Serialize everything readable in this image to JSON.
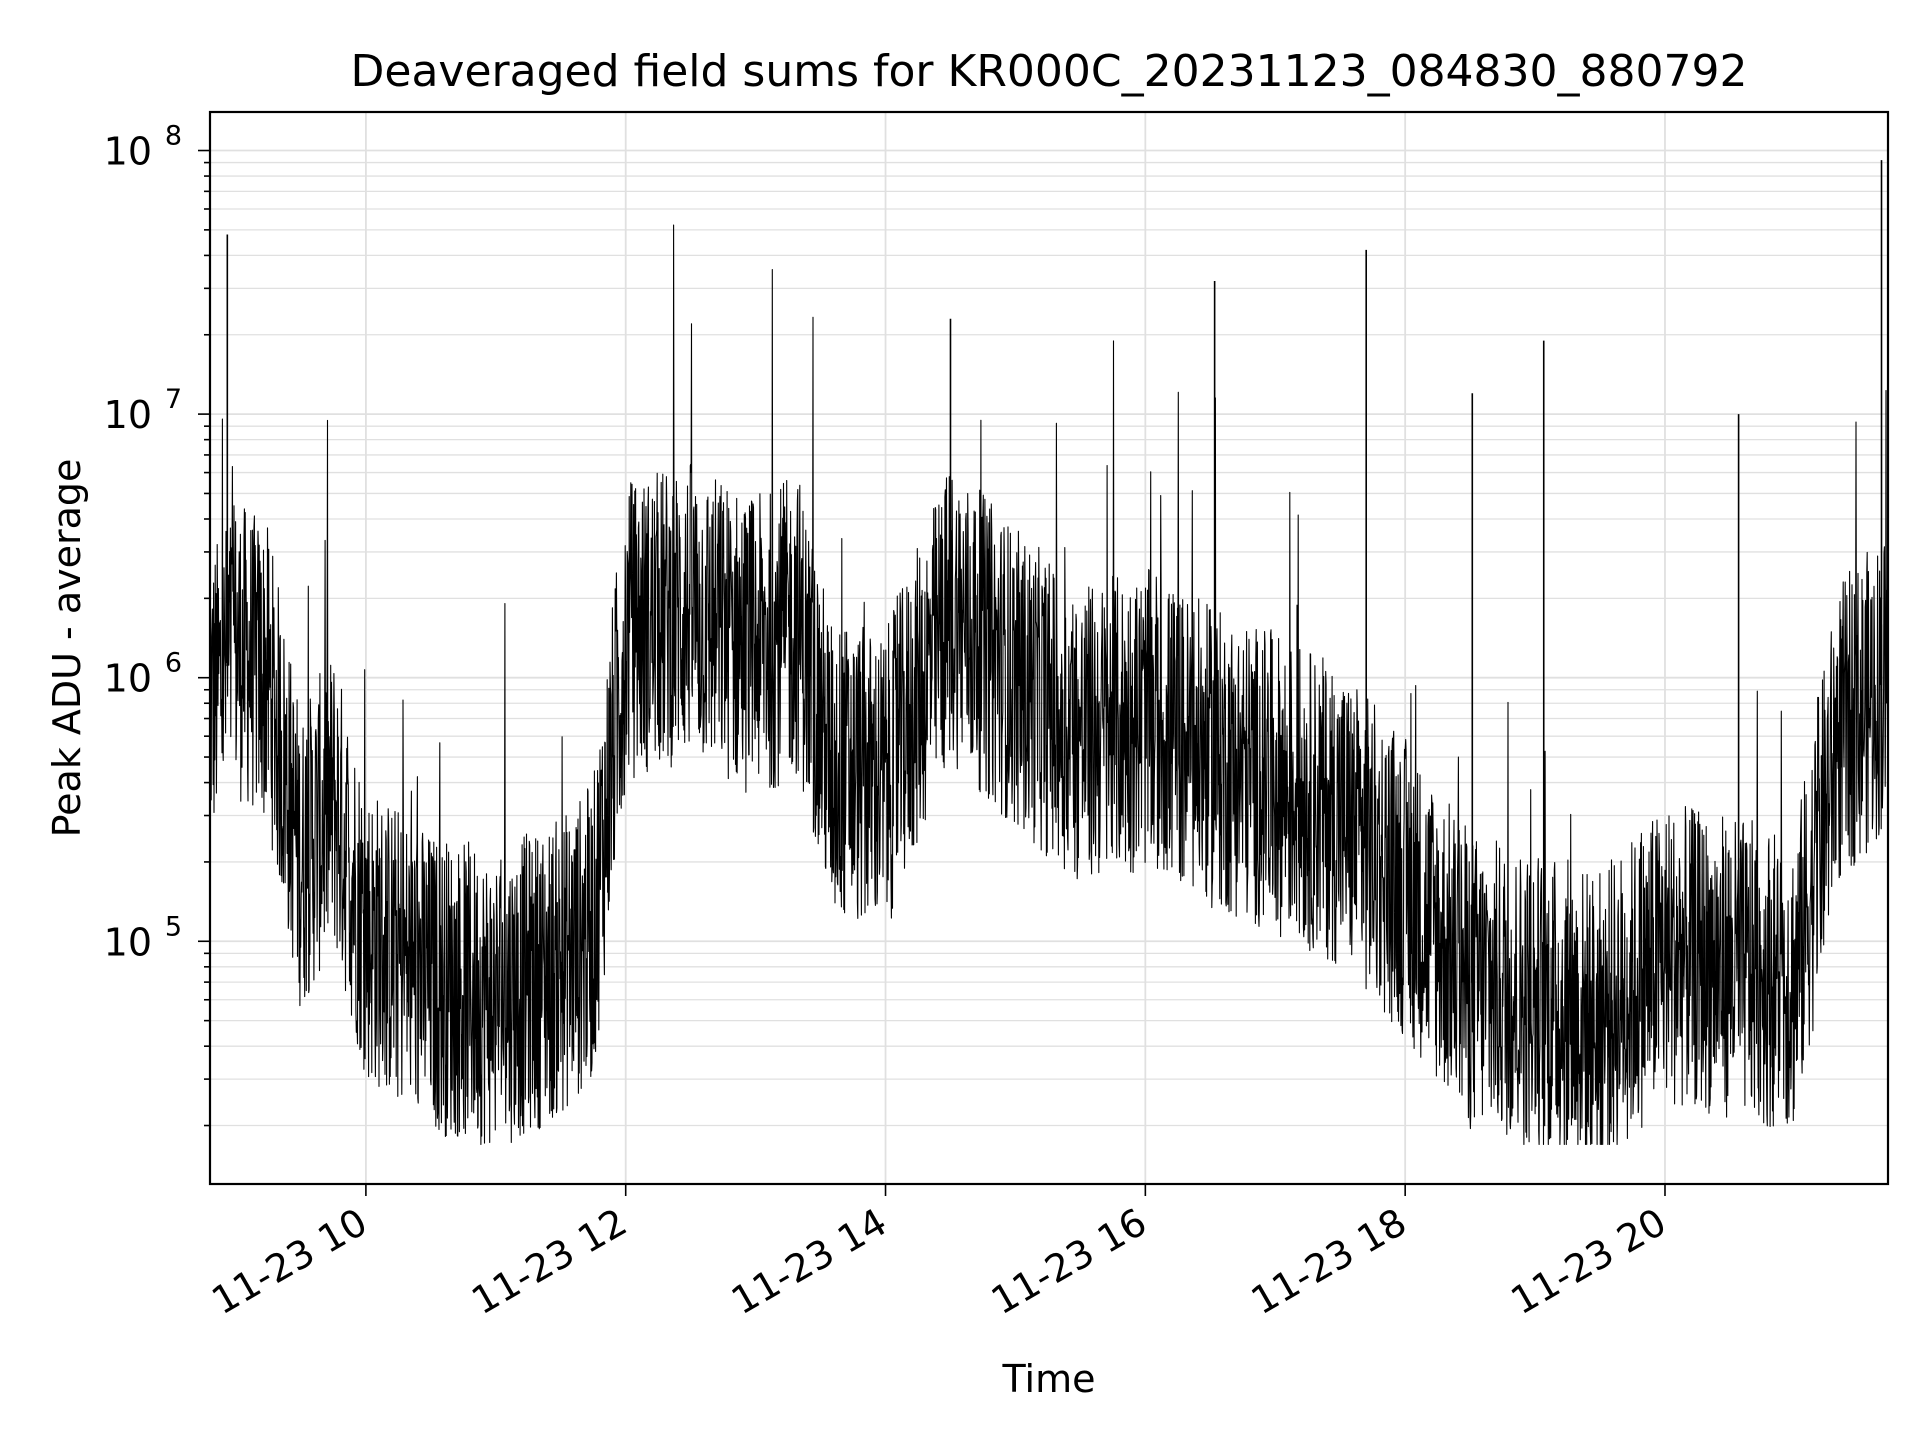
{
  "chart_data": {
    "type": "line",
    "title": "Deaveraged field sums for KR000C_20231123_084830_880792",
    "xlabel": "Time",
    "ylabel": "Peak ADU - average",
    "yscale": "log",
    "ylim": [
      12000,
      140000000
    ],
    "xlim": [
      "2023-11-23 08:48",
      "2023-11-23 21:43"
    ],
    "grid": true,
    "line_color": "#000000",
    "grid_color": "#e0e0e0",
    "x_ticks": [
      {
        "value": "2023-11-23 10:00",
        "label": "11-23 10"
      },
      {
        "value": "2023-11-23 12:00",
        "label": "11-23 12"
      },
      {
        "value": "2023-11-23 14:00",
        "label": "11-23 14"
      },
      {
        "value": "2023-11-23 16:00",
        "label": "11-23 16"
      },
      {
        "value": "2023-11-23 18:00",
        "label": "11-23 18"
      },
      {
        "value": "2023-11-23 20:00",
        "label": "11-23 20"
      }
    ],
    "y_ticks": [
      {
        "value": 100000,
        "base": "10",
        "exp": "5"
      },
      {
        "value": 1000000,
        "base": "10",
        "exp": "6"
      },
      {
        "value": 10000000,
        "base": "10",
        "exp": "7"
      },
      {
        "value": 100000000,
        "base": "10",
        "exp": "8"
      }
    ],
    "series": [
      {
        "x": [
          "2023-11-23 08:48",
          "2023-11-23 09:00",
          "2023-11-23 09:15",
          "2023-11-23 09:30",
          "2023-11-23 09:45",
          "2023-11-23 10:00",
          "2023-11-23 10:30",
          "2023-11-23 11:00",
          "2023-11-23 11:30",
          "2023-11-23 11:45",
          "2023-11-23 12:00",
          "2023-11-23 12:30",
          "2023-11-23 13:00",
          "2023-11-23 13:20",
          "2023-11-23 13:35",
          "2023-11-23 14:00",
          "2023-11-23 14:30",
          "2023-11-23 15:00",
          "2023-11-23 15:30",
          "2023-11-23 16:00",
          "2023-11-23 16:30",
          "2023-11-23 17:00",
          "2023-11-23 17:30",
          "2023-11-23 18:00",
          "2023-11-23 18:30",
          "2023-11-23 19:00",
          "2023-11-23 19:30",
          "2023-11-23 20:00",
          "2023-11-23 20:30",
          "2023-11-23 21:00",
          "2023-11-23 21:20",
          "2023-11-23 21:43"
        ],
        "y": [
          800000,
          1300000,
          1000000,
          200000,
          350000,
          110000,
          70000,
          60000,
          80000,
          110000,
          1500000,
          1800000,
          1300000,
          1600000,
          450000,
          400000,
          1800000,
          1000000,
          600000,
          700000,
          500000,
          400000,
          300000,
          160000,
          70000,
          60000,
          50000,
          90000,
          80000,
          70000,
          600000,
          1000000
        ]
      }
    ],
    "spikes": [
      {
        "x": "2023-11-23 08:56",
        "y": 48000000
      },
      {
        "x": "2023-11-23 14:30",
        "y": 23000000
      },
      {
        "x": "2023-11-23 16:32",
        "y": 32000000
      },
      {
        "x": "2023-11-23 17:42",
        "y": 42000000
      },
      {
        "x": "2023-11-23 18:31",
        "y": 12000000
      },
      {
        "x": "2023-11-23 19:04",
        "y": 19000000
      },
      {
        "x": "2023-11-23 20:34",
        "y": 10000000
      },
      {
        "x": "2023-11-23 21:40",
        "y": 92000000
      }
    ]
  }
}
